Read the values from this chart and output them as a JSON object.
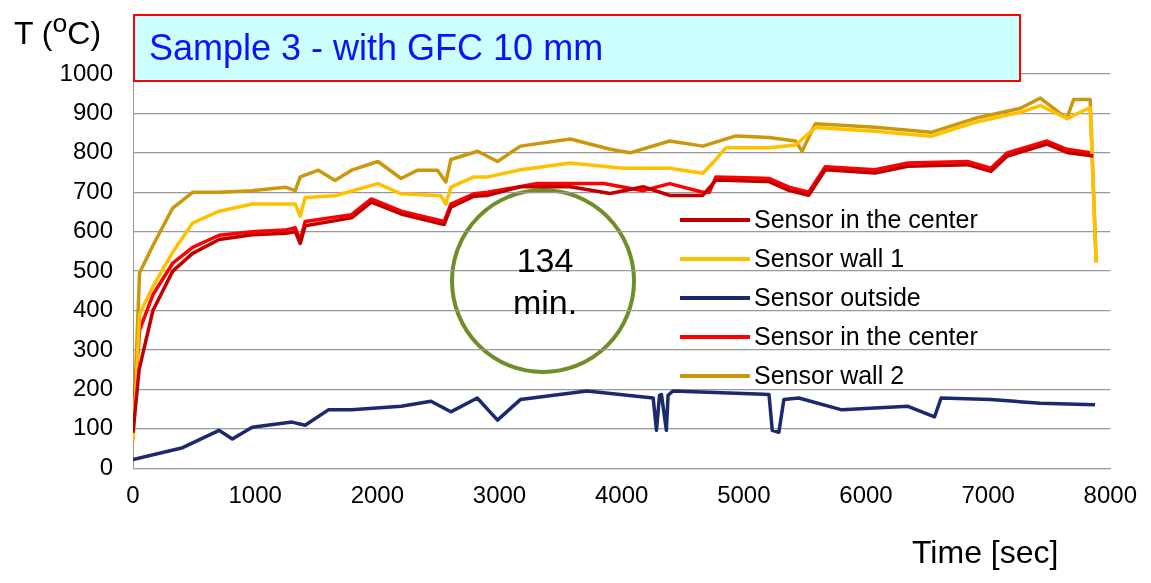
{
  "chart_data": {
    "type": "line",
    "title": "Sample 3 - with GFC 10 mm",
    "xlabel": "Time [sec]",
    "ylabel": "T ($^{o}$C)",
    "annotations": [
      "134 min."
    ],
    "xlim": [
      0,
      8000
    ],
    "xticks": [
      0,
      1000,
      2000,
      3000,
      4000,
      5000,
      6000,
      7000,
      8000
    ],
    "ylim": [
      0,
      1000
    ],
    "yticks": [
      0,
      100,
      200,
      300,
      400,
      500,
      600,
      700,
      800,
      900,
      1000
    ],
    "grid": "y",
    "legend": "right",
    "marker": "none",
    "line_style": "solid",
    "series": [
      {
        "name": "Sensor in the center",
        "color": "#c00000",
        "x": [
          0,
          50,
          163,
          325,
          488,
          705,
          976,
          1247,
          1328,
          1369,
          1409,
          1789,
          1951,
          2195,
          2547,
          2602,
          2791,
          2903,
          3171,
          3580,
          3906,
          4177,
          4393,
          4664,
          4772,
          5206,
          5369,
          5531,
          5667,
          6073,
          6344,
          6832,
          7022,
          7157,
          7482,
          7645,
          7860
        ],
        "values": [
          90,
          250,
          400,
          500,
          545,
          580,
          592,
          596,
          600,
          570,
          615,
          635,
          675,
          645,
          618,
          662,
          690,
          692,
          714,
          714,
          697,
          714,
          692,
          692,
          731,
          727,
          705,
          692,
          757,
          749,
          766,
          770,
          753,
          792,
          822,
          801,
          792
        ]
      },
      {
        "name": "Sensor wall 1",
        "color": "#ffc000",
        "x": [
          0,
          54,
          163,
          325,
          488,
          705,
          976,
          1328,
          1369,
          1409,
          1653,
          2005,
          2195,
          2520,
          2561,
          2602,
          2791,
          2903,
          3171,
          3580,
          4014,
          4393,
          4664,
          4745,
          4854,
          5206,
          5423,
          5585,
          6073,
          6534,
          6886,
          7265,
          7428,
          7645,
          7835,
          7884
        ],
        "values": [
          70,
          391,
          461,
          548,
          622,
          652,
          670,
          670,
          639,
          687,
          691,
          722,
          696,
          691,
          670,
          713,
          739,
          739,
          757,
          774,
          761,
          761,
          748,
          774,
          813,
          813,
          820,
          864,
          855,
          842,
          877,
          903,
          920,
          887,
          915,
          522
        ]
      },
      {
        "name": "Sensor outside",
        "color": "#1a2a6c",
        "x": [
          0,
          406,
          705,
          813,
          976,
          1301,
          1409,
          1599,
          1789,
          2195,
          2439,
          2602,
          2818,
          2984,
          3171,
          3716,
          4258,
          4285,
          4310,
          4326,
          4366,
          4380,
          4420,
          5206,
          5233,
          5287,
          5328,
          5450,
          5802,
          6344,
          6561,
          6615,
          7022,
          7428,
          7875
        ],
        "values": [
          22,
          52,
          96,
          74,
          104,
          117,
          109,
          148,
          148,
          157,
          170,
          143,
          178,
          122,
          174,
          196,
          178,
          96,
          185,
          187,
          96,
          185,
          196,
          187,
          96,
          91,
          174,
          178,
          148,
          157,
          130,
          178,
          174,
          165,
          161
        ]
      },
      {
        "name": "Sensor in the center",
        "color": "#ff0000",
        "x": [
          0,
          54,
          163,
          325,
          488,
          705,
          976,
          1247,
          1328,
          1369,
          1409,
          1789,
          1951,
          2195,
          2547,
          2602,
          2791,
          2903,
          3309,
          3852,
          4177,
          4393,
          4664,
          4718,
          4772,
          5206,
          5369,
          5531,
          5667,
          6073,
          6344,
          6832,
          7022,
          7157,
          7482,
          7645,
          7835
        ],
        "values": [
          130,
          350,
          440,
          520,
          560,
          591,
          600,
          604,
          610,
          578,
          626,
          643,
          683,
          652,
          626,
          670,
          696,
          700,
          722,
          722,
          704,
          722,
          700,
          700,
          739,
          735,
          713,
          700,
          765,
          757,
          774,
          778,
          761,
          800,
          830,
          809,
          800
        ]
      },
      {
        "name": "Sensor wall 2",
        "color": "#c9980c",
        "x": [
          0,
          54,
          163,
          325,
          488,
          705,
          976,
          1247,
          1328,
          1369,
          1518,
          1653,
          1789,
          2005,
          2195,
          2330,
          2493,
          2561,
          2602,
          2821,
          2984,
          3171,
          3580,
          3906,
          4068,
          4393,
          4664,
          4935,
          5206,
          5423,
          5477,
          5585,
          6073,
          6534,
          6886,
          7265,
          7428,
          7645,
          7699,
          7835,
          7884
        ],
        "values": [
          70,
          496,
          565,
          660,
          700,
          700,
          704,
          713,
          704,
          739,
          756,
          730,
          756,
          778,
          735,
          756,
          756,
          726,
          783,
          804,
          778,
          817,
          835,
          809,
          800,
          830,
          817,
          843,
          839,
          830,
          804,
          874,
          865,
          852,
          887,
          913,
          939,
          887,
          935,
          935,
          522
        ]
      }
    ]
  }
}
